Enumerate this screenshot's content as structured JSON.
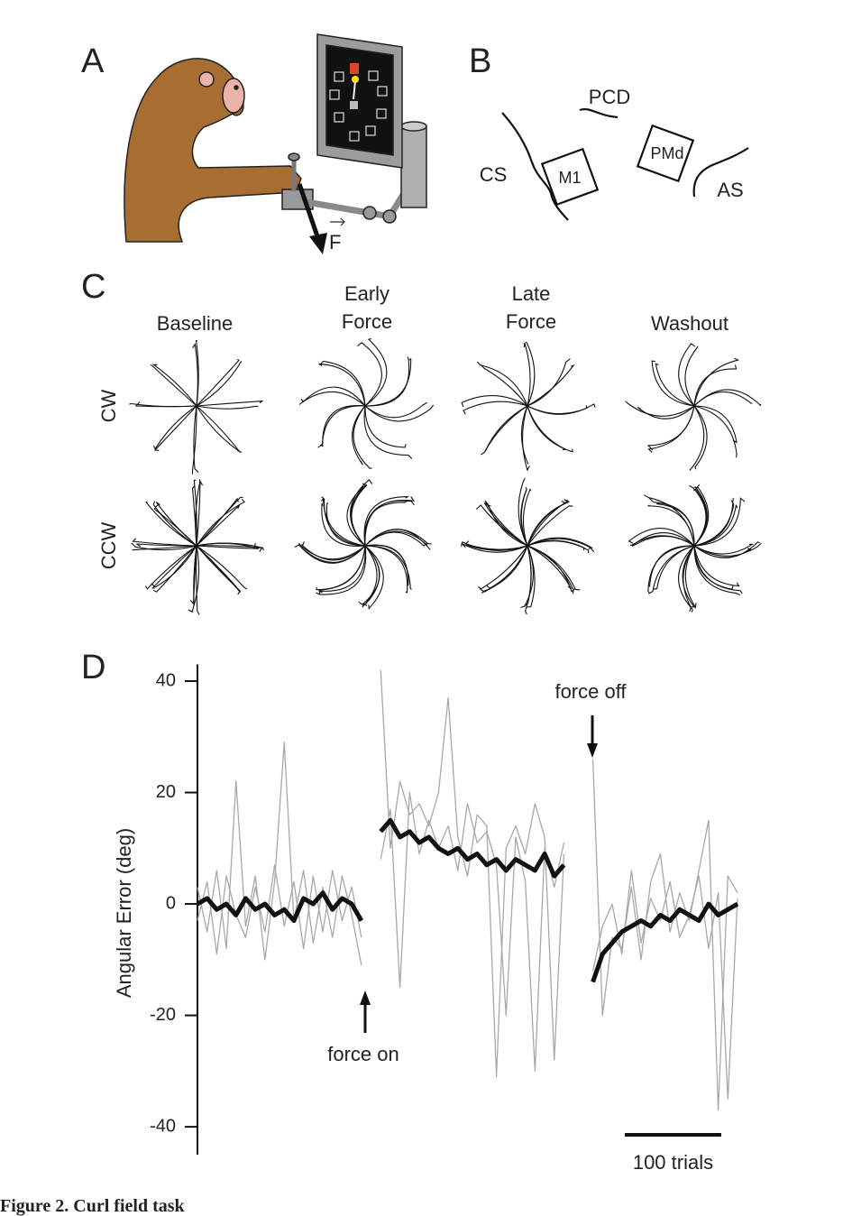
{
  "panel_labels": [
    "A",
    "B",
    "C",
    "D"
  ],
  "panel_a": {
    "force_label": "F"
  },
  "panel_b": {
    "labels": [
      "PCD",
      "CS",
      "M1",
      "PMd",
      "AS"
    ]
  },
  "panel_c": {
    "columns": [
      [
        "Baseline"
      ],
      [
        "Early",
        "Force"
      ],
      [
        "Late",
        "Force"
      ],
      [
        "Washout"
      ]
    ],
    "rows": [
      "CW",
      "CCW"
    ]
  },
  "chart_data": {
    "type": "line",
    "y_label": "Angular Error (deg)",
    "xlim": [
      0,
      560
    ],
    "ylim": [
      -45,
      43
    ],
    "yticks": [
      40,
      20,
      0,
      -20,
      -40
    ],
    "annotations": [
      "force on",
      "force off"
    ],
    "scale_bar": {
      "value": 100,
      "label": "100 trials"
    },
    "x": [
      0,
      10,
      20,
      30,
      40,
      50,
      60,
      70,
      80,
      90,
      100,
      110,
      120,
      130,
      140,
      150,
      160,
      170,
      180,
      190,
      200,
      210,
      220,
      230,
      240,
      250,
      260,
      270,
      280,
      290,
      300,
      310,
      320,
      330,
      340,
      350,
      360,
      370,
      380,
      390,
      400,
      410,
      420,
      430,
      440,
      450,
      460,
      470,
      480,
      490,
      500,
      510,
      520,
      530,
      540,
      550,
      560
    ],
    "series": [
      {
        "color": "#a8a8a8",
        "values": [
          3,
          -5,
          6,
          -8,
          22,
          -4,
          5,
          -10,
          4,
          29,
          -3,
          6,
          -7,
          3,
          -6,
          5,
          -2,
          -11,
          null,
          42,
          10,
          22,
          16,
          18,
          14,
          20,
          37,
          12,
          5,
          16,
          14,
          -31,
          10,
          14,
          9,
          18,
          12,
          -28,
          9,
          null,
          null,
          26,
          -20,
          -6,
          -8,
          3,
          -10,
          4,
          9,
          -5,
          2,
          -3,
          6,
          15,
          -37,
          5,
          2
        ]
      },
      {
        "color": "#a8a8a8",
        "values": [
          -3,
          4,
          -9,
          5,
          -2,
          -6,
          3,
          -5,
          7,
          -4,
          4,
          -8,
          5,
          -5,
          6,
          -3,
          3,
          -6,
          null,
          8,
          17,
          -15,
          20,
          9,
          15,
          10,
          14,
          6,
          18,
          11,
          13,
          7,
          -20,
          12,
          4,
          -30,
          10,
          3,
          11,
          null,
          null,
          -12,
          -4,
          0,
          -9,
          6,
          -7,
          1,
          -3,
          4,
          -6,
          -2,
          5,
          -8,
          2,
          -35,
          1
        ]
      },
      {
        "color": "#111111",
        "values": [
          0,
          1,
          -1,
          0,
          -2,
          1,
          -1,
          0,
          -2,
          -1,
          -3,
          1,
          0,
          2,
          -1,
          1,
          0,
          -3,
          null,
          13,
          15,
          12,
          13,
          11,
          12,
          10,
          9,
          10,
          8,
          9,
          7,
          8,
          6,
          8,
          7,
          6,
          9,
          5,
          7,
          null,
          null,
          -14,
          -9,
          -7,
          -5,
          -4,
          -3,
          -4,
          -2,
          -3,
          -1,
          -2,
          -3,
          0,
          -2,
          -1,
          0
        ]
      }
    ]
  },
  "caption": "Figure 2. Curl field task"
}
